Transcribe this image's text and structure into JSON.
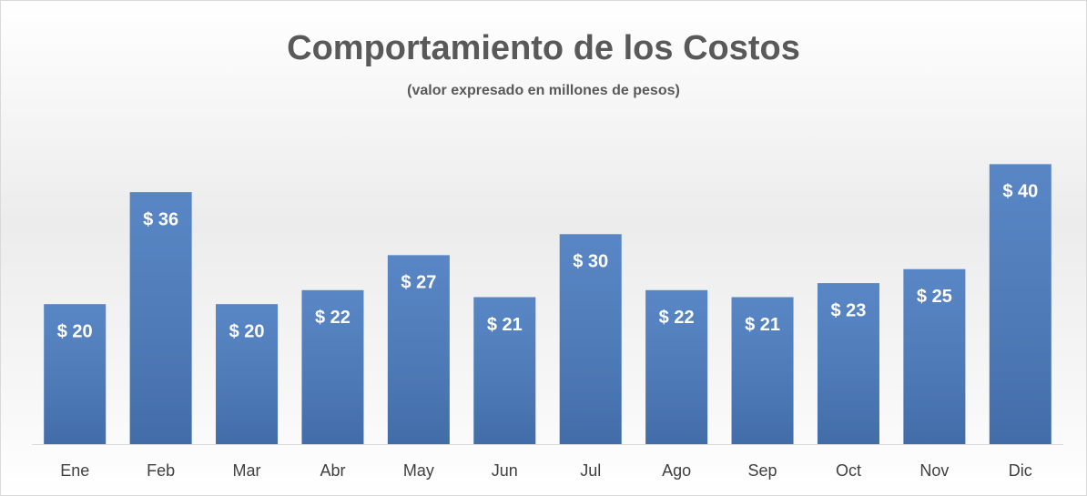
{
  "chart_data": {
    "type": "bar",
    "title": "Comportamiento de los Costos",
    "subtitle": "(valor expresado en millones de pesos)",
    "categories": [
      "Ene",
      "Feb",
      "Mar",
      "Abr",
      "May",
      "Jun",
      "Jul",
      "Ago",
      "Sep",
      "Oct",
      "Nov",
      "Dic"
    ],
    "values": [
      20,
      36,
      20,
      22,
      27,
      21,
      30,
      22,
      21,
      23,
      25,
      40
    ],
    "value_labels": [
      "$ 20",
      "$ 36",
      "$ 20",
      "$ 22",
      "$ 27",
      "$ 21",
      "$ 30",
      "$ 22",
      "$ 21",
      "$ 23",
      "$ 25",
      "$ 40"
    ],
    "color": "#4a7bbf",
    "ylim": [
      0,
      42
    ],
    "grid": false
  }
}
